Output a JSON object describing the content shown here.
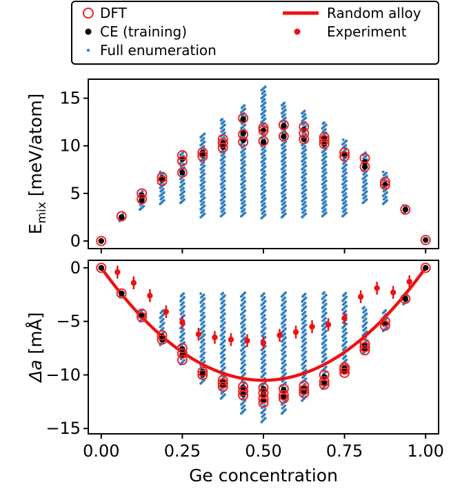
{
  "chart_data": {
    "type": "scatter",
    "legend": {
      "placement": "top",
      "entries": [
        {
          "name": "DFT",
          "marker": "open-circle",
          "color": "#ee2222"
        },
        {
          "name": "CE (training)",
          "marker": "dot",
          "color": "#000000"
        },
        {
          "name": "Full enumeration",
          "marker": "small-dot",
          "color": "#2f7fc1"
        },
        {
          "name": "Random alloy",
          "marker": "line",
          "color": "#ee1111"
        },
        {
          "name": "Experiment",
          "marker": "dot",
          "color": "#ee1111"
        }
      ]
    },
    "xlabel": "Ge concentration",
    "xlim": [
      -0.04,
      1.04
    ],
    "xticks": [
      0.0,
      0.25,
      0.5,
      0.75,
      1.0
    ],
    "xtick_labels": [
      "0.00",
      "0.25",
      "0.50",
      "0.75",
      "1.00"
    ],
    "panels": [
      {
        "id": "top",
        "ylabel_main": "E",
        "ylabel_sub": "mix",
        "ylabel_rest": " [meV/atom]",
        "ylim": [
          -0.8,
          17.0
        ],
        "yticks": [
          0,
          5,
          10,
          15
        ],
        "ytick_labels": [
          "0",
          "5",
          "10",
          "15"
        ],
        "enum_ranges": [
          [
            0.0625,
            2.1,
            2.9
          ],
          [
            0.125,
            3.3,
            5.3
          ],
          [
            0.1875,
            3.9,
            7.3
          ],
          [
            0.25,
            4.0,
            9.3
          ],
          [
            0.3125,
            2.5,
            11.3
          ],
          [
            0.375,
            2.6,
            12.9
          ],
          [
            0.4375,
            2.6,
            14.3
          ],
          [
            0.5,
            2.4,
            16.2
          ],
          [
            0.5625,
            2.5,
            14.6
          ],
          [
            0.625,
            2.5,
            13.7
          ],
          [
            0.6875,
            2.6,
            12.5
          ],
          [
            0.75,
            2.6,
            10.7
          ],
          [
            0.8125,
            4.0,
            9.3
          ],
          [
            0.875,
            3.9,
            7.3
          ],
          [
            0.9375,
            2.9,
            3.8
          ]
        ],
        "dft": [
          [
            0.0,
            0.0
          ],
          [
            0.0625,
            2.6
          ],
          [
            0.125,
            4.4
          ],
          [
            0.125,
            5.0
          ],
          [
            0.1875,
            6.3
          ],
          [
            0.1875,
            6.7
          ],
          [
            0.25,
            7.2
          ],
          [
            0.25,
            8.4
          ],
          [
            0.25,
            9.0
          ],
          [
            0.3125,
            8.9
          ],
          [
            0.3125,
            9.3
          ],
          [
            0.375,
            9.8
          ],
          [
            0.375,
            10.3
          ],
          [
            0.375,
            10.7
          ],
          [
            0.4375,
            10.4
          ],
          [
            0.4375,
            11.2
          ],
          [
            0.4375,
            12.9
          ],
          [
            0.5,
            10.5
          ],
          [
            0.5,
            11.6
          ],
          [
            0.5,
            11.9
          ],
          [
            0.5625,
            11.0
          ],
          [
            0.5625,
            12.2
          ],
          [
            0.625,
            10.7
          ],
          [
            0.625,
            11.3
          ],
          [
            0.625,
            12.0
          ],
          [
            0.6875,
            10.2
          ],
          [
            0.6875,
            10.6
          ],
          [
            0.6875,
            10.9
          ],
          [
            0.75,
            8.9
          ],
          [
            0.75,
            9.3
          ],
          [
            0.8125,
            7.8
          ],
          [
            0.8125,
            8.7
          ],
          [
            0.875,
            5.9
          ],
          [
            0.875,
            6.2
          ],
          [
            0.9375,
            3.3
          ],
          [
            1.0,
            0.1
          ]
        ],
        "ce": [
          [
            0.0,
            0.0
          ],
          [
            0.0625,
            2.5
          ],
          [
            0.125,
            4.3
          ],
          [
            0.125,
            4.8
          ],
          [
            0.1875,
            6.4
          ],
          [
            0.1875,
            6.6
          ],
          [
            0.25,
            7.2
          ],
          [
            0.25,
            8.6
          ],
          [
            0.3125,
            9.0
          ],
          [
            0.3125,
            9.3
          ],
          [
            0.375,
            9.9
          ],
          [
            0.375,
            10.3
          ],
          [
            0.4375,
            10.6
          ],
          [
            0.4375,
            11.3
          ],
          [
            0.4375,
            12.8
          ],
          [
            0.5,
            10.4
          ],
          [
            0.5,
            11.6
          ],
          [
            0.5625,
            11.0
          ],
          [
            0.5625,
            12.1
          ],
          [
            0.625,
            10.7
          ],
          [
            0.625,
            11.7
          ],
          [
            0.6875,
            10.2
          ],
          [
            0.6875,
            10.8
          ],
          [
            0.75,
            9.0
          ],
          [
            0.8125,
            7.8
          ],
          [
            0.8125,
            8.3
          ],
          [
            0.875,
            5.9
          ],
          [
            0.9375,
            3.3
          ],
          [
            1.0,
            0.1
          ]
        ]
      },
      {
        "id": "bottom",
        "ylabel_main": "Δa",
        "ylabel_rest": " [mÅ]",
        "ylim": [
          -15.5,
          0.7
        ],
        "yticks": [
          0,
          -5,
          -10,
          -15
        ],
        "ytick_labels": [
          "0",
          "−5",
          "−10",
          "−15"
        ],
        "enum_ranges": [
          [
            0.0625,
            -2.7,
            -2.2
          ],
          [
            0.125,
            -5.0,
            -3.9
          ],
          [
            0.1875,
            -7.2,
            -3.9
          ],
          [
            0.25,
            -9.0,
            -2.3
          ],
          [
            0.3125,
            -10.8,
            -2.3
          ],
          [
            0.375,
            -12.2,
            -2.3
          ],
          [
            0.4375,
            -13.6,
            -2.3
          ],
          [
            0.5,
            -14.4,
            -2.3
          ],
          [
            0.5625,
            -13.6,
            -2.3
          ],
          [
            0.625,
            -12.4,
            -2.4
          ],
          [
            0.6875,
            -11.3,
            -2.3
          ],
          [
            0.75,
            -9.8,
            -2.3
          ],
          [
            0.8125,
            -8.0,
            -3.6
          ],
          [
            0.875,
            -5.9,
            -3.9
          ],
          [
            0.9375,
            -3.4,
            -2.4
          ]
        ],
        "random_alloy": {
          "a": 0.0,
          "b": -42.0,
          "c": 42.0
        },
        "experiment": {
          "x": [
            0.05,
            0.1,
            0.15,
            0.2,
            0.25,
            0.3,
            0.35,
            0.4,
            0.45,
            0.5,
            0.55,
            0.6,
            0.65,
            0.7,
            0.75,
            0.8,
            0.85,
            0.9,
            0.95
          ],
          "y": [
            -0.4,
            -1.4,
            -2.6,
            -4.1,
            -5.1,
            -6.2,
            -6.5,
            -6.7,
            -6.8,
            -7.0,
            -6.3,
            -6.0,
            -5.5,
            -5.3,
            -4.7,
            -2.7,
            -1.9,
            -2.3,
            -1.3
          ],
          "err": [
            0.6,
            0.6,
            0.6,
            0.6,
            0.6,
            0.6,
            0.6,
            0.6,
            0.6,
            0.6,
            0.6,
            0.6,
            0.6,
            0.6,
            0.6,
            0.6,
            0.6,
            0.6,
            0.6
          ]
        },
        "dft": [
          [
            0.0,
            0.0
          ],
          [
            0.0625,
            -2.4
          ],
          [
            0.125,
            -4.3
          ],
          [
            0.125,
            -4.6
          ],
          [
            0.1875,
            -6.3
          ],
          [
            0.1875,
            -6.7
          ],
          [
            0.25,
            -7.5
          ],
          [
            0.25,
            -8.0
          ],
          [
            0.25,
            -8.6
          ],
          [
            0.3125,
            -9.7
          ],
          [
            0.3125,
            -10.0
          ],
          [
            0.375,
            -10.5
          ],
          [
            0.375,
            -10.8
          ],
          [
            0.375,
            -11.1
          ],
          [
            0.4375,
            -11.1
          ],
          [
            0.4375,
            -11.5
          ],
          [
            0.4375,
            -11.9
          ],
          [
            0.5,
            -11.2
          ],
          [
            0.5,
            -11.7
          ],
          [
            0.5,
            -12.2
          ],
          [
            0.5,
            -12.6
          ],
          [
            0.5625,
            -11.3
          ],
          [
            0.5625,
            -11.9
          ],
          [
            0.5625,
            -12.2
          ],
          [
            0.625,
            -11.0
          ],
          [
            0.625,
            -11.4
          ],
          [
            0.625,
            -11.7
          ],
          [
            0.6875,
            -10.0
          ],
          [
            0.6875,
            -10.6
          ],
          [
            0.6875,
            -10.9
          ],
          [
            0.75,
            -9.3
          ],
          [
            0.75,
            -9.5
          ],
          [
            0.75,
            -9.8
          ],
          [
            0.8125,
            -7.1
          ],
          [
            0.8125,
            -7.4
          ],
          [
            0.8125,
            -7.7
          ],
          [
            0.875,
            -5.0
          ],
          [
            0.875,
            -5.4
          ],
          [
            0.9375,
            -2.9
          ],
          [
            1.0,
            0.0
          ]
        ],
        "ce": [
          [
            0.0,
            0.0
          ],
          [
            0.0625,
            -2.4
          ],
          [
            0.125,
            -4.4
          ],
          [
            0.1875,
            -6.4
          ],
          [
            0.1875,
            -6.7
          ],
          [
            0.25,
            -7.6
          ],
          [
            0.25,
            -8.1
          ],
          [
            0.3125,
            -9.7
          ],
          [
            0.3125,
            -10.0
          ],
          [
            0.375,
            -10.6
          ],
          [
            0.375,
            -11.0
          ],
          [
            0.4375,
            -11.2
          ],
          [
            0.4375,
            -11.8
          ],
          [
            0.5,
            -11.3
          ],
          [
            0.5,
            -11.8
          ],
          [
            0.5,
            -12.3
          ],
          [
            0.5625,
            -11.4
          ],
          [
            0.5625,
            -12.0
          ],
          [
            0.625,
            -11.2
          ],
          [
            0.625,
            -11.5
          ],
          [
            0.6875,
            -10.2
          ],
          [
            0.6875,
            -10.7
          ],
          [
            0.75,
            -9.4
          ],
          [
            0.75,
            -9.7
          ],
          [
            0.8125,
            -7.3
          ],
          [
            0.8125,
            -7.6
          ],
          [
            0.875,
            -5.2
          ],
          [
            0.9375,
            -2.9
          ],
          [
            1.0,
            0.0
          ]
        ]
      }
    ]
  }
}
